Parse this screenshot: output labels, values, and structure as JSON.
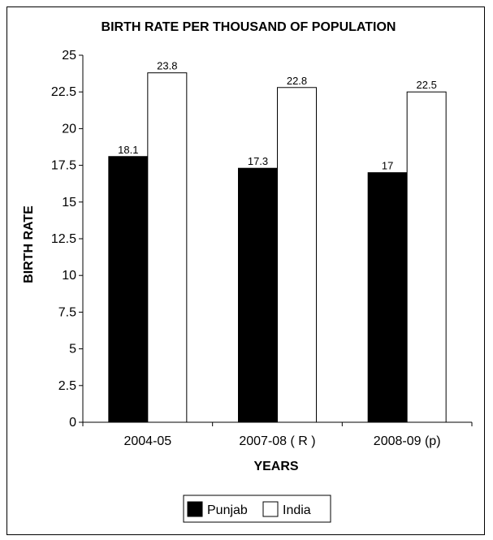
{
  "chart_data": {
    "type": "bar",
    "title": "BIRTH RATE PER THOUSAND OF POPULATION",
    "xlabel": "YEARS",
    "ylabel": "BIRTH RATE",
    "categories": [
      "2004-05",
      "2007-08 ( R )",
      "2008-09 (p)"
    ],
    "series": [
      {
        "name": "Punjab",
        "values": [
          18.1,
          17.3,
          17
        ],
        "color": "#000000"
      },
      {
        "name": "India",
        "values": [
          23.8,
          22.8,
          22.5
        ],
        "color": "#ffffff"
      }
    ],
    "data_labels": [
      [
        "18.1",
        "17.3",
        "17"
      ],
      [
        "23.8",
        "22.8",
        "22.5"
      ]
    ],
    "yticks": [
      "0",
      "2.5",
      "5",
      "7.5",
      "10",
      "12.5",
      "15",
      "17.5",
      "20",
      "22.5",
      "25"
    ],
    "ylim": [
      0,
      25
    ],
    "grid": false,
    "legend_position": "bottom"
  }
}
